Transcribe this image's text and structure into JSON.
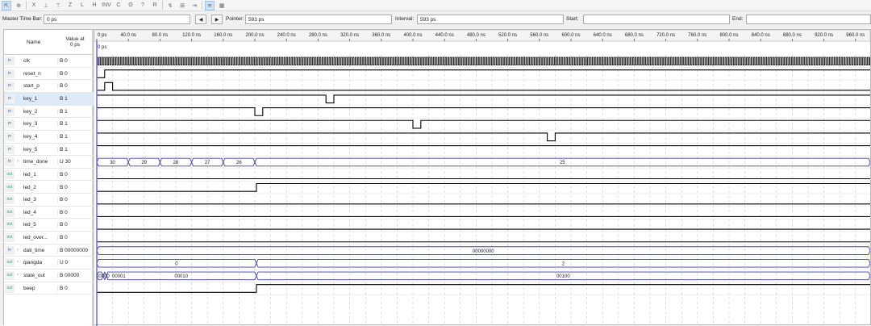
{
  "toolbar": {
    "icons": [
      "select-pointer-icon",
      "zoom-icon",
      "set-unknown-icon",
      "set-low-icon",
      "set-high-icon",
      "high-impedance-icon",
      "weak-low-icon",
      "weak-high-icon",
      "invert-icon",
      "count-value-icon",
      "forcing-clock-icon",
      "arbitrary-value-icon",
      "random-value-icon",
      "snap-to-transition-icon",
      "snap-grid-icon",
      "insert-time-icon",
      "overwrite-clock-icon",
      "group-icon"
    ]
  },
  "master": {
    "master_label": "Master Time Bar:",
    "master_value": "0 ps",
    "pointer_label": "Pointer:",
    "pointer_value": "593 ps",
    "interval_label": "Interval:",
    "interval_value": "593 ps",
    "start_label": "Start:",
    "start_value": "",
    "end_label": "End:",
    "end_value": ""
  },
  "header": {
    "name": "Name",
    "value_at": "Value at",
    "value_time": "0 ps",
    "cursor_label": "0 ps"
  },
  "ruler": {
    "unit": "ns",
    "ticks": [
      "0 ps",
      "40.0 ns",
      "80.0 ns",
      "120.0 ns",
      "160.0 ns",
      "200.0 ns",
      "240.0 ns",
      "280.0 ns",
      "320.0 ns",
      "360.0 ns",
      "400.0 ns",
      "440.0 ns",
      "480.0 ns",
      "520.0 ns",
      "560.0 ns",
      "600.0 ns",
      "640.0 ns",
      "680.0 ns",
      "720.0 ns",
      "760.0 ns",
      "800.0 ns",
      "840.0 ns",
      "880.0 ns",
      "920.0 ns",
      "960.0 ns"
    ]
  },
  "colors": {
    "wave": "#000000",
    "bus": "#4040a0",
    "cursor": "#6a6ae0",
    "grid": "#c8c8c8",
    "selected_row": "#ddebf8"
  },
  "signals": [
    {
      "name": "clk",
      "value": "B 0",
      "dir": "in",
      "clock_period_ns": 3
    },
    {
      "name": "reset_n",
      "value": "B 0",
      "dir": "in",
      "edges": [
        [
          0,
          0
        ],
        [
          10,
          1
        ]
      ]
    },
    {
      "name": "start_p",
      "value": "B 0",
      "dir": "in",
      "edges": [
        [
          0,
          0
        ],
        [
          10,
          1
        ],
        [
          20,
          0
        ]
      ]
    },
    {
      "name": "key_1",
      "value": "B 1",
      "dir": "in",
      "selected": true,
      "edges": [
        [
          0,
          1
        ],
        [
          290,
          0
        ],
        [
          300,
          1
        ]
      ]
    },
    {
      "name": "key_2",
      "value": "B 1",
      "dir": "in",
      "edges": [
        [
          0,
          1
        ],
        [
          200,
          0
        ],
        [
          210,
          1
        ]
      ]
    },
    {
      "name": "key_3",
      "value": "B 1",
      "dir": "in",
      "edges": [
        [
          0,
          1
        ],
        [
          400,
          0
        ],
        [
          410,
          1
        ]
      ]
    },
    {
      "name": "key_4",
      "value": "B 1",
      "dir": "in",
      "edges": [
        [
          0,
          1
        ],
        [
          570,
          0
        ],
        [
          580,
          1
        ]
      ]
    },
    {
      "name": "key_5",
      "value": "B 1",
      "dir": "in",
      "edges": [
        [
          0,
          1
        ]
      ]
    },
    {
      "name": "time_done",
      "value": "U 30",
      "dir": "in",
      "bus": true,
      "segments": [
        [
          0,
          40,
          "30"
        ],
        [
          40,
          80,
          "29"
        ],
        [
          80,
          120,
          "28"
        ],
        [
          120,
          160,
          "27"
        ],
        [
          160,
          200,
          "26"
        ],
        [
          200,
          1000,
          "25"
        ]
      ]
    },
    {
      "name": "led_1",
      "value": "B 0",
      "dir": "out",
      "edges": [
        [
          0,
          0
        ]
      ]
    },
    {
      "name": "led_2",
      "value": "B 0",
      "dir": "out",
      "edges": [
        [
          0,
          0
        ],
        [
          202,
          1
        ]
      ]
    },
    {
      "name": "led_3",
      "value": "B 0",
      "dir": "out",
      "edges": [
        [
          0,
          0
        ]
      ]
    },
    {
      "name": "led_4",
      "value": "B 0",
      "dir": "out",
      "edges": [
        [
          0,
          0
        ]
      ]
    },
    {
      "name": "led_5",
      "value": "B 0",
      "dir": "out",
      "edges": [
        [
          0,
          0
        ]
      ]
    },
    {
      "name": "led_over...",
      "value": "B 0",
      "dir": "out",
      "edges": [
        [
          0,
          0
        ]
      ]
    },
    {
      "name": "dati_time",
      "value": "B 00000000",
      "dir": "in",
      "bus": true,
      "segments": [
        [
          0,
          1000,
          "00000000"
        ]
      ]
    },
    {
      "name": "qiangda",
      "value": "U 0",
      "dir": "out",
      "bus": true,
      "segments": [
        [
          0,
          202,
          "0"
        ],
        [
          202,
          1000,
          "2"
        ]
      ]
    },
    {
      "name": "state_out",
      "value": "B 00000",
      "dir": "out",
      "bus": true,
      "segments": [
        [
          0,
          8,
          "00000"
        ],
        [
          8,
          12,
          "00001"
        ],
        [
          12,
          202,
          "00010"
        ],
        [
          202,
          1000,
          "00100"
        ]
      ]
    },
    {
      "name": "beep",
      "value": "B 0",
      "dir": "out",
      "edges": [
        [
          0,
          0
        ],
        [
          202,
          1
        ]
      ]
    }
  ]
}
